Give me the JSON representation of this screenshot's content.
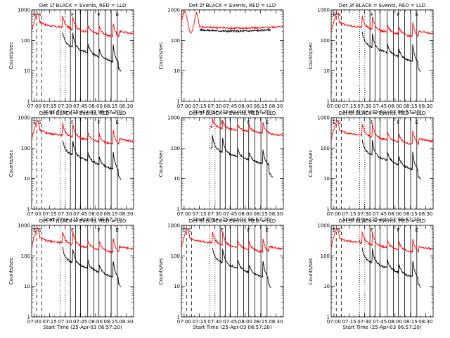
{
  "chart_data": [
    {
      "type": "line",
      "title": "Det 1f BLACK = Events, RED = LLD",
      "xlabel": "Start Time (25-Apr-03 06:57:20)",
      "ylabel": "Counts/sec",
      "yscale": "log",
      "ylim": [
        1,
        1000
      ],
      "xlim_minutes": [
        0,
        100
      ],
      "xtick_labels": [
        "07:00",
        "07:15",
        "07:30",
        "07:45",
        "08:00",
        "08:15",
        "08:30"
      ],
      "ytick_labels": [
        "1",
        "10",
        "100",
        "1000"
      ],
      "flags": [
        {
          "t": 3,
          "label": "E"
        },
        {
          "t": 8,
          "label": "S"
        },
        {
          "t": 40,
          "label": "F"
        },
        {
          "t": 66,
          "label": "F"
        },
        {
          "t": 84,
          "label": "E"
        }
      ],
      "dashed_lines": [
        5,
        10
      ],
      "dotted_lines": [
        28,
        33
      ],
      "solid_lines": [
        38,
        43,
        48,
        55,
        61,
        66,
        72,
        78,
        84
      ],
      "profile": "normal",
      "series": [
        {
          "name": "Events",
          "color": "#000000"
        },
        {
          "name": "LLD",
          "color": "#ff0000"
        }
      ]
    },
    {
      "type": "line",
      "title": "Det 2f BLACK = Events, RED = LLD",
      "xlabel": "Start Time (25-Apr-03 06:57:20)",
      "ylabel": "Counts/sec",
      "yscale": "log",
      "ylim": [
        1,
        1000
      ],
      "xlim_minutes": [
        0,
        100
      ],
      "xtick_labels": [
        "07:00",
        "07:15",
        "07:30",
        "07:45",
        "08:00",
        "08:15",
        "08:30"
      ],
      "ytick_labels": [
        "1",
        "10",
        "100",
        "1000"
      ],
      "flags": [],
      "dashed_lines": [],
      "dotted_lines": [],
      "solid_lines": [],
      "profile": "flat",
      "series": [
        {
          "name": "Events",
          "color": "#000000"
        },
        {
          "name": "LLD",
          "color": "#ff0000"
        }
      ]
    },
    {
      "type": "line",
      "title": "Det 3f BLACK = Events, RED = LLD",
      "xlabel": "Start Time (25-Apr-03 06:57:20)",
      "ylabel": "Counts/sec",
      "yscale": "log",
      "ylim": [
        1,
        1000
      ],
      "xlim_minutes": [
        0,
        100
      ],
      "xtick_labels": [
        "07:00",
        "07:15",
        "07:30",
        "07:45",
        "08:00",
        "08:15",
        "08:30"
      ],
      "ytick_labels": [
        "1",
        "10",
        "100",
        "1000"
      ],
      "flags": [
        {
          "t": 3,
          "label": "E"
        },
        {
          "t": 8,
          "label": "S"
        },
        {
          "t": 40,
          "label": "F"
        },
        {
          "t": 66,
          "label": "F"
        },
        {
          "t": 84,
          "label": "E"
        }
      ],
      "dashed_lines": [
        5,
        10
      ],
      "dotted_lines": [
        28,
        33
      ],
      "solid_lines": [
        38,
        43,
        48,
        55,
        61,
        66,
        72,
        78,
        84
      ],
      "profile": "normal",
      "series": [
        {
          "name": "Events",
          "color": "#000000"
        },
        {
          "name": "LLD",
          "color": "#ff0000"
        }
      ]
    },
    {
      "type": "line",
      "title": "Det 4f BLACK = Events, RED = LLD",
      "xlabel": "Start Time (25-Apr-03 06:57:20)",
      "ylabel": "Counts/sec",
      "yscale": "log",
      "ylim": [
        1,
        1000
      ],
      "xlim_minutes": [
        0,
        100
      ],
      "xtick_labels": [
        "07:00",
        "07:15",
        "07:30",
        "07:45",
        "08:00",
        "08:15",
        "08:30"
      ],
      "ytick_labels": [
        "1",
        "10",
        "100",
        "1000"
      ],
      "flags": [
        {
          "t": 3,
          "label": "E"
        },
        {
          "t": 8,
          "label": "S"
        },
        {
          "t": 40,
          "label": "F"
        },
        {
          "t": 66,
          "label": "F"
        },
        {
          "t": 84,
          "label": "E"
        }
      ],
      "dashed_lines": [
        5,
        10
      ],
      "dotted_lines": [
        28,
        33
      ],
      "solid_lines": [
        38,
        43,
        48,
        55,
        61,
        66,
        72,
        78,
        84
      ],
      "profile": "normal",
      "series": [
        {
          "name": "Events",
          "color": "#000000"
        },
        {
          "name": "LLD",
          "color": "#ff0000"
        }
      ]
    },
    {
      "type": "line",
      "title": "Det 5f BLACK = Events, RED = LLD",
      "xlabel": "Start Time (25-Apr-03 06:57:20)",
      "ylabel": "Counts/sec",
      "yscale": "log",
      "ylim": [
        1,
        1000
      ],
      "xlim_minutes": [
        0,
        100
      ],
      "xtick_labels": [
        "07:00",
        "07:15",
        "07:30",
        "07:45",
        "08:00",
        "08:15",
        "08:30"
      ],
      "ytick_labels": [
        "1",
        "10",
        "100",
        "1000"
      ],
      "flags": [
        {
          "t": 40,
          "label": "F"
        },
        {
          "t": 66,
          "label": "F"
        },
        {
          "t": 84,
          "label": "E"
        }
      ],
      "dashed_lines": [],
      "dotted_lines": [
        28,
        33
      ],
      "solid_lines": [
        38,
        43,
        48,
        55,
        61,
        66,
        72,
        78,
        84
      ],
      "profile": "det5",
      "series": [
        {
          "name": "Events",
          "color": "#000000"
        },
        {
          "name": "LLD",
          "color": "#ff0000"
        }
      ]
    },
    {
      "type": "line",
      "title": "Det 6f BLACK = Events, RED = LLD",
      "xlabel": "Start Time (25-Apr-03 06:57:20)",
      "ylabel": "Counts/sec",
      "yscale": "log",
      "ylim": [
        1,
        1000
      ],
      "xlim_minutes": [
        0,
        100
      ],
      "xtick_labels": [
        "07:00",
        "07:15",
        "07:30",
        "07:45",
        "08:00",
        "08:15",
        "08:30"
      ],
      "ytick_labels": [
        "1",
        "10",
        "100",
        "1000"
      ],
      "flags": [
        {
          "t": 3,
          "label": "E"
        },
        {
          "t": 8,
          "label": "S"
        },
        {
          "t": 40,
          "label": "F"
        },
        {
          "t": 66,
          "label": "F"
        },
        {
          "t": 84,
          "label": "E"
        }
      ],
      "dashed_lines": [
        5,
        10
      ],
      "dotted_lines": [
        28,
        33
      ],
      "solid_lines": [
        38,
        43,
        48,
        55,
        61,
        66,
        72,
        78,
        84
      ],
      "profile": "normal",
      "series": [
        {
          "name": "Events",
          "color": "#000000"
        },
        {
          "name": "LLD",
          "color": "#ff0000"
        }
      ]
    },
    {
      "type": "line",
      "title": "Det 7f BLACK = Events, RED = LLD",
      "xlabel": "Start Time (25-Apr-03 06:57:20)",
      "ylabel": "Counts/sec",
      "yscale": "log",
      "ylim": [
        1,
        1000
      ],
      "xlim_minutes": [
        0,
        100
      ],
      "xtick_labels": [
        "07:00",
        "07:15",
        "07:30",
        "07:45",
        "08:00",
        "08:15",
        "08:30"
      ],
      "ytick_labels": [
        "1",
        "10",
        "100",
        "1000"
      ],
      "flags": [
        {
          "t": 3,
          "label": "E"
        },
        {
          "t": 8,
          "label": "S"
        },
        {
          "t": 40,
          "label": "F"
        },
        {
          "t": 66,
          "label": "F"
        },
        {
          "t": 84,
          "label": "E"
        }
      ],
      "dashed_lines": [
        5,
        10
      ],
      "dotted_lines": [
        28,
        33
      ],
      "solid_lines": [
        38,
        43,
        48,
        55,
        61,
        66,
        72,
        78,
        84
      ],
      "profile": "normal",
      "series": [
        {
          "name": "Events",
          "color": "#000000"
        },
        {
          "name": "LLD",
          "color": "#ff0000"
        }
      ]
    },
    {
      "type": "line",
      "title": "Det 8f BLACK = Events, RED = LLD",
      "xlabel": "Start Time (25-Apr-03 06:57:20)",
      "ylabel": "Counts/sec",
      "yscale": "log",
      "ylim": [
        1,
        1000
      ],
      "xlim_minutes": [
        0,
        100
      ],
      "xtick_labels": [
        "07:00",
        "07:15",
        "07:30",
        "07:45",
        "08:00",
        "08:15",
        "08:30"
      ],
      "ytick_labels": [
        "1",
        "10",
        "100",
        "1000"
      ],
      "flags": [
        {
          "t": 3,
          "label": "E"
        },
        {
          "t": 8,
          "label": "S"
        },
        {
          "t": 40,
          "label": "F"
        },
        {
          "t": 66,
          "label": "F"
        },
        {
          "t": 84,
          "label": "E"
        }
      ],
      "dashed_lines": [
        5,
        10
      ],
      "dotted_lines": [
        28,
        33
      ],
      "solid_lines": [
        38,
        43,
        48,
        55,
        61,
        66,
        72,
        78,
        84
      ],
      "profile": "normal",
      "series": [
        {
          "name": "Events",
          "color": "#000000"
        },
        {
          "name": "LLD",
          "color": "#ff0000"
        }
      ]
    },
    {
      "type": "line",
      "title": "Det 9f BLACK = Events, RED = LLD",
      "xlabel": "Start Time (25-Apr-03 06:57:20)",
      "ylabel": "Counts/sec",
      "yscale": "log",
      "ylim": [
        1,
        1000
      ],
      "xlim_minutes": [
        0,
        100
      ],
      "xtick_labels": [
        "07:00",
        "07:15",
        "07:30",
        "07:45",
        "08:00",
        "08:15",
        "08:30"
      ],
      "ytick_labels": [
        "1",
        "10",
        "100",
        "1000"
      ],
      "flags": [
        {
          "t": 3,
          "label": "E"
        },
        {
          "t": 8,
          "label": "S"
        },
        {
          "t": 40,
          "label": "F"
        },
        {
          "t": 66,
          "label": "F"
        },
        {
          "t": 84,
          "label": "E"
        }
      ],
      "dashed_lines": [
        5,
        10
      ],
      "dotted_lines": [
        28,
        33
      ],
      "solid_lines": [
        38,
        43,
        48,
        55,
        61,
        66,
        72,
        78,
        84
      ],
      "profile": "normal",
      "series": [
        {
          "name": "Events",
          "color": "#000000"
        },
        {
          "name": "LLD",
          "color": "#ff0000"
        }
      ]
    }
  ]
}
